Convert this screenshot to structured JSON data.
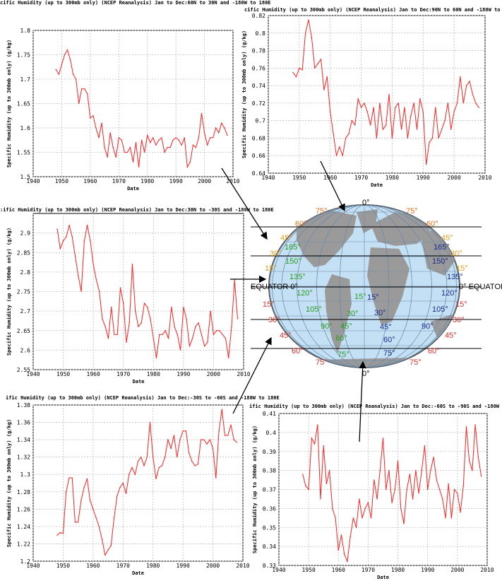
{
  "chart_data": [
    {
      "id": "p1",
      "type": "line",
      "title": "cific Humidity (up to 300mb only) (NCEP Reanalysis) Jan to Dec:60N to 30N and -180W to 180E",
      "xlabel": "Date",
      "ylabel": "Specific Humidity (up to 300mb only) (g/kg)",
      "xlim": [
        1940,
        2010
      ],
      "ylim": [
        1.5,
        1.8
      ],
      "xticks": [
        1940,
        1950,
        1960,
        1970,
        1980,
        1990,
        2000,
        2010
      ],
      "yticks": [
        1.5,
        1.55,
        1.6,
        1.65,
        1.7,
        1.75,
        1.8
      ],
      "ytick_labels": [
        "1.5",
        "1.55",
        "1.6",
        "1.65",
        "1.7",
        "1.75",
        "1.8"
      ],
      "grid": true,
      "line_color": "#ff2020",
      "x": [
        1948,
        1949,
        1950,
        1951,
        1952,
        1953,
        1954,
        1955,
        1956,
        1957,
        1958,
        1959,
        1960,
        1961,
        1962,
        1963,
        1964,
        1965,
        1966,
        1967,
        1968,
        1969,
        1970,
        1971,
        1972,
        1973,
        1974,
        1975,
        1976,
        1977,
        1978,
        1979,
        1980,
        1981,
        1982,
        1983,
        1984,
        1985,
        1986,
        1987,
        1988,
        1989,
        1990,
        1991,
        1992,
        1993,
        1994,
        1995,
        1996,
        1997,
        1998,
        1999,
        2000,
        2001,
        2002,
        2003,
        2004,
        2005,
        2006,
        2007,
        2008
      ],
      "values": [
        1.72,
        1.71,
        1.73,
        1.75,
        1.76,
        1.74,
        1.71,
        1.7,
        1.65,
        1.68,
        1.68,
        1.67,
        1.62,
        1.625,
        1.6,
        1.58,
        1.61,
        1.56,
        1.54,
        1.59,
        1.56,
        1.54,
        1.58,
        1.575,
        1.55,
        1.55,
        1.56,
        1.53,
        1.57,
        1.52,
        1.575,
        1.55,
        1.585,
        1.57,
        1.58,
        1.565,
        1.575,
        1.58,
        1.55,
        1.56,
        1.56,
        1.575,
        1.58,
        1.575,
        1.565,
        1.58,
        1.52,
        1.53,
        1.565,
        1.56,
        1.58,
        1.63,
        1.59,
        1.565,
        1.58,
        1.58,
        1.6,
        1.59,
        1.61,
        1.6,
        1.585
      ]
    },
    {
      "id": "p2",
      "type": "line",
      "title": "cific Humidity (up to 300mb only) (NCEP Reanalysis) Jan to Dec:90N to 60N and -180W to 180E",
      "xlabel": "Date",
      "ylabel": "Specific Humidity (up to 300mb only) (g/kg)",
      "xlim": [
        1940,
        2010
      ],
      "ylim": [
        0.64,
        0.82
      ],
      "xticks": [
        1940,
        1950,
        1960,
        1970,
        1980,
        1990,
        2000,
        2010
      ],
      "yticks": [
        0.64,
        0.66,
        0.68,
        0.7,
        0.72,
        0.74,
        0.76,
        0.78,
        0.8,
        0.82
      ],
      "ytick_labels": [
        "0.64",
        "0.66",
        "0.68",
        "0.7",
        "0.72",
        "0.74",
        "0.76",
        "0.78",
        "0.8",
        "0.82"
      ],
      "grid": true,
      "line_color": "#ff2020",
      "x": [
        1948,
        1949,
        1950,
        1951,
        1952,
        1953,
        1954,
        1955,
        1956,
        1957,
        1958,
        1959,
        1960,
        1961,
        1962,
        1963,
        1964,
        1965,
        1966,
        1967,
        1968,
        1969,
        1970,
        1971,
        1972,
        1973,
        1974,
        1975,
        1976,
        1977,
        1978,
        1979,
        1980,
        1981,
        1982,
        1983,
        1984,
        1985,
        1986,
        1987,
        1988,
        1989,
        1990,
        1991,
        1992,
        1993,
        1994,
        1995,
        1996,
        1997,
        1998,
        1999,
        2000,
        2001,
        2002,
        2003,
        2004,
        2005,
        2006,
        2007,
        2008
      ],
      "values": [
        0.755,
        0.75,
        0.76,
        0.758,
        0.8,
        0.815,
        0.795,
        0.76,
        0.765,
        0.77,
        0.735,
        0.75,
        0.71,
        0.685,
        0.66,
        0.67,
        0.66,
        0.68,
        0.685,
        0.7,
        0.695,
        0.725,
        0.715,
        0.72,
        0.71,
        0.695,
        0.715,
        0.68,
        0.72,
        0.69,
        0.695,
        0.73,
        0.68,
        0.715,
        0.72,
        0.69,
        0.715,
        0.68,
        0.705,
        0.72,
        0.69,
        0.725,
        0.71,
        0.65,
        0.675,
        0.68,
        0.715,
        0.68,
        0.69,
        0.7,
        0.72,
        0.69,
        0.71,
        0.72,
        0.75,
        0.72,
        0.74,
        0.745,
        0.73,
        0.72,
        0.715
      ]
    },
    {
      "id": "p3",
      "type": "line",
      "title": ":ific Humidity (up to 300mb only) (NCEP Reanalysis) Jan to Dec:30N to -30S and -180W to 180E",
      "xlabel": "Date",
      "ylabel": "Specific Humidity (up to 300mb only) (g/kg)",
      "xlim": [
        1940,
        2010
      ],
      "ylim": [
        2.55,
        2.95
      ],
      "xticks": [
        1940,
        1950,
        1960,
        1970,
        1980,
        1990,
        2000,
        2010
      ],
      "yticks": [
        2.55,
        2.6,
        2.65,
        2.7,
        2.75,
        2.8,
        2.85,
        2.9
      ],
      "ytick_labels": [
        "2.55",
        "2.6",
        "2.65",
        "2.7",
        "2.75",
        "2.8",
        "2.85",
        "2.9"
      ],
      "grid": true,
      "line_color": "#ff2020",
      "x": [
        1948,
        1949,
        1950,
        1951,
        1952,
        1953,
        1954,
        1955,
        1956,
        1957,
        1958,
        1959,
        1960,
        1961,
        1962,
        1963,
        1964,
        1965,
        1966,
        1967,
        1968,
        1969,
        1970,
        1971,
        1972,
        1973,
        1974,
        1975,
        1976,
        1977,
        1978,
        1979,
        1980,
        1981,
        1982,
        1983,
        1984,
        1985,
        1986,
        1987,
        1988,
        1989,
        1990,
        1991,
        1992,
        1993,
        1994,
        1995,
        1996,
        1997,
        1998,
        1999,
        2000,
        2001,
        2002,
        2003,
        2004,
        2005,
        2006,
        2007,
        2008
      ],
      "values": [
        2.91,
        2.86,
        2.88,
        2.89,
        2.92,
        2.89,
        2.84,
        2.79,
        2.75,
        2.88,
        2.92,
        2.88,
        2.82,
        2.78,
        2.75,
        2.68,
        2.66,
        2.63,
        2.71,
        2.64,
        2.64,
        2.76,
        2.72,
        2.62,
        2.67,
        2.82,
        2.7,
        2.66,
        2.67,
        2.72,
        2.71,
        2.68,
        2.63,
        2.58,
        2.64,
        2.64,
        2.65,
        2.63,
        2.71,
        2.66,
        2.64,
        2.6,
        2.71,
        2.68,
        2.61,
        2.63,
        2.66,
        2.67,
        2.64,
        2.61,
        2.62,
        2.7,
        2.64,
        2.65,
        2.65,
        2.64,
        2.63,
        2.58,
        2.66,
        2.78,
        2.68
      ]
    },
    {
      "id": "p4",
      "type": "line",
      "title": "ific Humidity (up to 300mb only) (NCEP Reanalysis) Jan to Dec:-30S to -60S and -180W to 180E",
      "xlabel": "Date",
      "ylabel": "Specific Humidity (up to 300mb only) (g/kg)",
      "xlim": [
        1940,
        2010
      ],
      "ylim": [
        1.2,
        1.38
      ],
      "xticks": [
        1940,
        1950,
        1960,
        1970,
        1980,
        1990,
        2000,
        2010
      ],
      "yticks": [
        1.2,
        1.22,
        1.24,
        1.26,
        1.28,
        1.3,
        1.32,
        1.34,
        1.36,
        1.38
      ],
      "ytick_labels": [
        "1.2",
        "1.22",
        "1.24",
        "1.26",
        "1.28",
        "1.3",
        "1.32",
        "1.34",
        "1.36",
        "1.38"
      ],
      "grid": true,
      "line_color": "#ff2020",
      "x": [
        1948,
        1949,
        1950,
        1951,
        1952,
        1953,
        1954,
        1955,
        1956,
        1957,
        1958,
        1959,
        1960,
        1961,
        1962,
        1963,
        1964,
        1965,
        1966,
        1967,
        1968,
        1969,
        1970,
        1971,
        1972,
        1973,
        1974,
        1975,
        1976,
        1977,
        1978,
        1979,
        1980,
        1981,
        1982,
        1983,
        1984,
        1985,
        1986,
        1987,
        1988,
        1989,
        1990,
        1991,
        1992,
        1993,
        1994,
        1995,
        1996,
        1997,
        1998,
        1999,
        2000,
        2001,
        2002,
        2003,
        2004,
        2005,
        2006,
        2007,
        2008
      ],
      "values": [
        1.23,
        1.233,
        1.232,
        1.28,
        1.296,
        1.296,
        1.245,
        1.245,
        1.27,
        1.285,
        1.295,
        1.27,
        1.26,
        1.25,
        1.24,
        1.225,
        1.207,
        1.213,
        1.218,
        1.25,
        1.275,
        1.285,
        1.29,
        1.278,
        1.3,
        1.308,
        1.3,
        1.315,
        1.32,
        1.31,
        1.32,
        1.36,
        1.32,
        1.295,
        1.308,
        1.31,
        1.32,
        1.34,
        1.33,
        1.345,
        1.32,
        1.34,
        1.35,
        1.35,
        1.325,
        1.315,
        1.31,
        1.312,
        1.34,
        1.34,
        1.335,
        1.34,
        1.33,
        1.296,
        1.35,
        1.375,
        1.345,
        1.345,
        1.357,
        1.34,
        1.337
      ]
    },
    {
      "id": "p5",
      "type": "line",
      "title": "ific Humidity (up to 300mb only) (NCEP Reanalysis) Jan to Dec:-60S to -90S and -180W to 180E",
      "xlabel": "Date",
      "ylabel": "Specific Humidity (up to 300mb only) (g/kg)",
      "xlim": [
        1940,
        2010
      ],
      "ylim": [
        0.33,
        0.41
      ],
      "xticks": [
        1940,
        1950,
        1960,
        1970,
        1980,
        1990,
        2000,
        2010
      ],
      "yticks": [
        0.33,
        0.34,
        0.35,
        0.36,
        0.37,
        0.38,
        0.39,
        0.4,
        0.41
      ],
      "ytick_labels": [
        "0.33",
        "0.34",
        "0.35",
        "0.36",
        "0.37",
        "0.38",
        "0.39",
        "0.4",
        "0.41"
      ],
      "grid": true,
      "line_color": "#ff2020",
      "x": [
        1948,
        1949,
        1950,
        1951,
        1952,
        1953,
        1954,
        1955,
        1956,
        1957,
        1958,
        1959,
        1960,
        1961,
        1962,
        1963,
        1964,
        1965,
        1966,
        1967,
        1968,
        1969,
        1970,
        1971,
        1972,
        1973,
        1974,
        1975,
        1976,
        1977,
        1978,
        1979,
        1980,
        1981,
        1982,
        1983,
        1984,
        1985,
        1986,
        1987,
        1988,
        1989,
        1990,
        1991,
        1992,
        1993,
        1994,
        1995,
        1996,
        1997,
        1998,
        1999,
        2000,
        2001,
        2002,
        2003,
        2004,
        2005,
        2006,
        2007,
        2008
      ],
      "values": [
        0.378,
        0.372,
        0.37,
        0.397,
        0.394,
        0.404,
        0.365,
        0.393,
        0.373,
        0.38,
        0.36,
        0.355,
        0.338,
        0.346,
        0.336,
        0.332,
        0.345,
        0.355,
        0.35,
        0.365,
        0.355,
        0.36,
        0.363,
        0.355,
        0.375,
        0.365,
        0.38,
        0.397,
        0.37,
        0.38,
        0.363,
        0.37,
        0.385,
        0.36,
        0.352,
        0.37,
        0.378,
        0.365,
        0.38,
        0.368,
        0.38,
        0.393,
        0.37,
        0.38,
        0.387,
        0.375,
        0.37,
        0.365,
        0.355,
        0.373,
        0.355,
        0.37,
        0.368,
        0.358,
        0.372,
        0.403,
        0.385,
        0.38,
        0.404,
        0.387,
        0.377
      ]
    }
  ],
  "globe": {
    "ocean_color": "#c4e0f4",
    "land_color": "#9a9a9a",
    "lat_labels_left": [
      "75°",
      "60°",
      "45°",
      "30°",
      "15°",
      "EQUATOR 0°",
      "15°",
      "30°",
      "45°",
      "60°",
      "75°"
    ],
    "lat_labels_right": [
      "75°",
      "60°",
      "45°",
      "30°",
      "15°",
      "0° EQUATOR",
      "15°",
      "30°",
      "45°",
      "60°",
      "75°"
    ],
    "top_zero": "0°",
    "bottom_zero": "0°",
    "green_labels": [
      "165°",
      "150°",
      "135°",
      "120°",
      "105°",
      "90°",
      "75°",
      "60°",
      "45°",
      "30°",
      "15°"
    ],
    "blue_labels": [
      "15°",
      "30°",
      "45°",
      "60°",
      "75°",
      "90°",
      "105°",
      "120°",
      "135°",
      "150°",
      "165°"
    ]
  }
}
